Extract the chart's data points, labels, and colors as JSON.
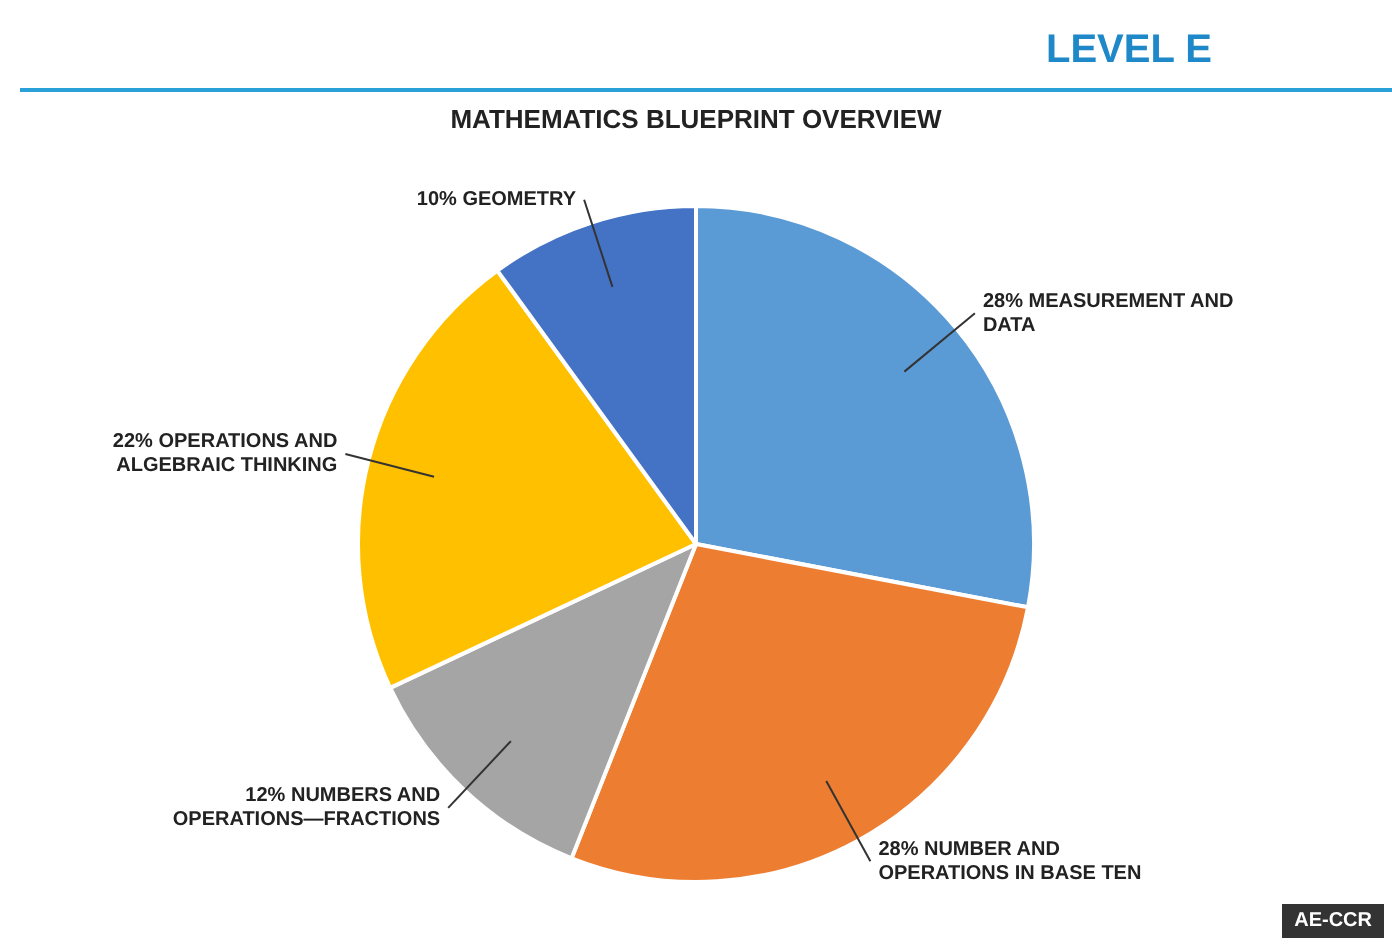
{
  "chart_data": {
    "type": "pie",
    "title": "MATHEMATICS BLUEPRINT OVERVIEW",
    "subtitle": "LEVEL E",
    "categories": [
      "MEASUREMENT AND DATA",
      "NUMBER AND OPERATIONS IN BASE TEN",
      "NUMBERS AND OPERATIONS—FRACTIONS",
      "OPERATIONS AND ALGEBRAIC THINKING",
      "GEOMETRY"
    ],
    "values": [
      28,
      28,
      12,
      22,
      10
    ],
    "value_labels": [
      "28%",
      "28%",
      "12%",
      "22%",
      "10%"
    ],
    "colors": [
      "#5b9bd5",
      "#ed7d31",
      "#a5a5a5",
      "#ffc000",
      "#4472c4"
    ],
    "legend": false,
    "annotations": [
      "AE-CCR"
    ]
  }
}
